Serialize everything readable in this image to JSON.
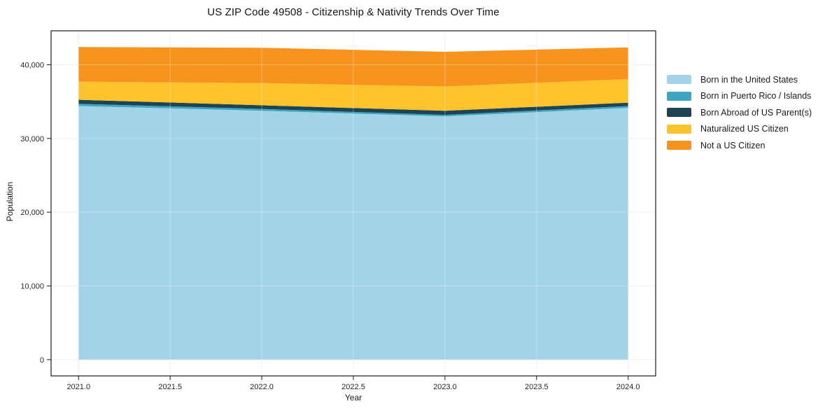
{
  "chart_data": {
    "type": "area",
    "stacked": true,
    "title": "US ZIP Code 49508 - Citizenship & Nativity Trends Over Time",
    "xlabel": "Year",
    "ylabel": "Population",
    "x": [
      2021,
      2022,
      2023,
      2024
    ],
    "series": [
      {
        "name": "Born in the United States",
        "color": "#a3d3e7",
        "values": [
          34400,
          33750,
          33000,
          34150
        ]
      },
      {
        "name": "Born in Puerto Rico / Islands",
        "color": "#3fa6c2",
        "values": [
          300,
          250,
          200,
          250
        ]
      },
      {
        "name": "Born Abroad of US Parent(s)",
        "color": "#1d4355",
        "values": [
          550,
          500,
          550,
          450
        ]
      },
      {
        "name": "Naturalized US Citizen",
        "color": "#fcc32c",
        "values": [
          2450,
          3000,
          3300,
          3200
        ]
      },
      {
        "name": "Not a US Citizen",
        "color": "#f7941d",
        "values": [
          4700,
          4800,
          4700,
          4300
        ]
      }
    ],
    "xlim": [
      2020.85,
      2024.15
    ],
    "ylim": [
      -2200,
      44600
    ],
    "xticks": [
      2021.0,
      2021.5,
      2022.0,
      2022.5,
      2023.0,
      2023.5,
      2024.0
    ],
    "xtick_labels": [
      "2021.0",
      "2021.5",
      "2022.0",
      "2022.5",
      "2023.0",
      "2023.5",
      "2024.0"
    ],
    "yticks": [
      0,
      10000,
      20000,
      30000,
      40000
    ],
    "ytick_labels": [
      "0",
      "10,000",
      "20,000",
      "30,000",
      "40,000"
    ],
    "grid": true,
    "legend_position": "right",
    "colors": {
      "spine": "#1a1a1a",
      "tick_label": "#262626",
      "grid_under": "#e9e9e9",
      "grid_over": "rgba(255,255,255,0.32)",
      "background": "#ffffff"
    }
  }
}
